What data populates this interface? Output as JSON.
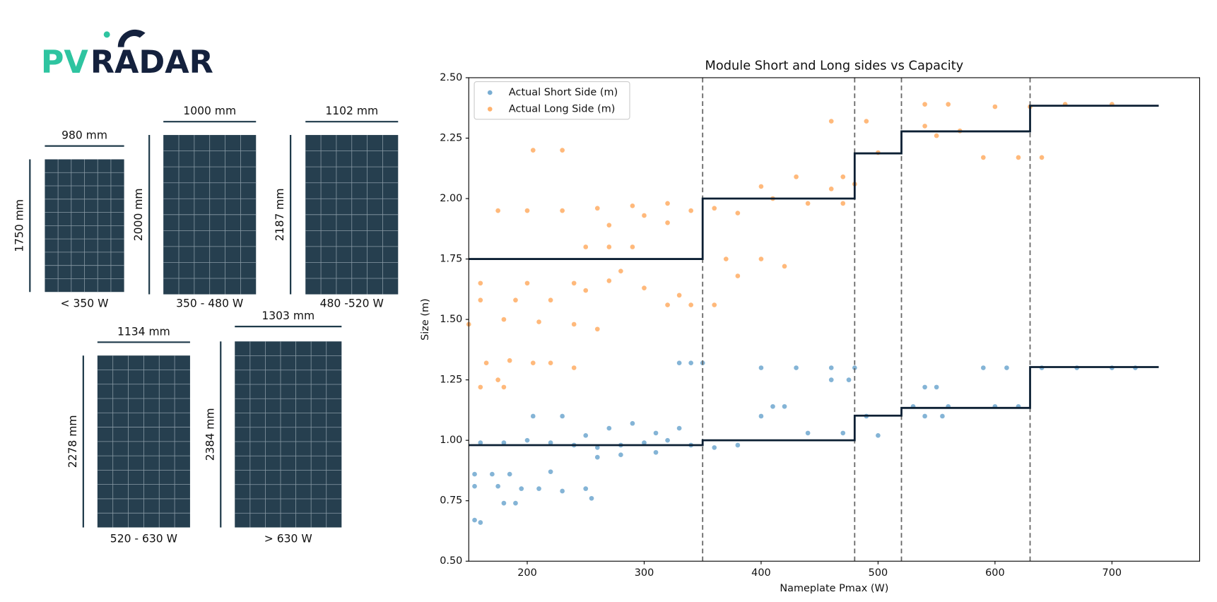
{
  "logo": {
    "part1": "PV",
    "part2": "RADAR"
  },
  "modules": [
    {
      "width": "980 mm",
      "height": "1750 mm",
      "range": "< 350 W"
    },
    {
      "width": "1000 mm",
      "height": "2000 mm",
      "range": "350 - 480 W"
    },
    {
      "width": "1102 mm",
      "height": "2187 mm",
      "range": "480 -520 W"
    },
    {
      "width": "1134 mm",
      "height": "2278 mm",
      "range": "520 - 630 W"
    },
    {
      "width": "1303 mm",
      "height": "2384 mm",
      "range": "> 630 W"
    }
  ],
  "chart_data": {
    "type": "scatter",
    "title": "Module Short and Long sides vs Capacity",
    "x_label": "Nameplate Pmax (W)",
    "y_label": "Size (m)",
    "xlim": [
      150,
      775
    ],
    "xticks": [
      200,
      300,
      400,
      500,
      600,
      700
    ],
    "ylim": [
      0.5,
      2.5
    ],
    "yticks": [
      {
        "value": 0.5,
        "label": "0.50"
      },
      {
        "value": 0.75,
        "label": "0.75"
      },
      {
        "value": 1.0,
        "label": "1.00"
      },
      {
        "value": 1.25,
        "label": "1.25"
      },
      {
        "value": 1.5,
        "label": "1.50"
      },
      {
        "value": 1.75,
        "label": "1.75"
      },
      {
        "value": 2.0,
        "label": "2.00"
      },
      {
        "value": 2.25,
        "label": "2.25"
      },
      {
        "value": 2.5,
        "label": "2.50"
      }
    ],
    "legend": "upper left",
    "series": [
      {
        "name": "Actual Short Side (m)",
        "color": "#1f77b4",
        "x": [
          155,
          170,
          185,
          155,
          175,
          195,
          210,
          230,
          250,
          180,
          190,
          155,
          160,
          220,
          255,
          160,
          180,
          200,
          220,
          240,
          260,
          280,
          300,
          320,
          340,
          360,
          380,
          250,
          270,
          290,
          310,
          330,
          260,
          280,
          310,
          205,
          230,
          330,
          340,
          350,
          400,
          430,
          460,
          480,
          460,
          475,
          410,
          420,
          400,
          440,
          470,
          490,
          500,
          540,
          550,
          530,
          560,
          600,
          620,
          540,
          555,
          590,
          610,
          640,
          670,
          700,
          720
        ],
        "values": [
          0.86,
          0.86,
          0.86,
          0.81,
          0.81,
          0.8,
          0.8,
          0.79,
          0.8,
          0.74,
          0.74,
          0.67,
          0.66,
          0.87,
          0.76,
          0.99,
          0.99,
          1.0,
          0.99,
          0.98,
          0.97,
          0.98,
          0.99,
          1.0,
          0.98,
          0.97,
          0.98,
          1.02,
          1.05,
          1.07,
          1.03,
          1.05,
          0.93,
          0.94,
          0.95,
          1.1,
          1.1,
          1.32,
          1.32,
          1.32,
          1.3,
          1.3,
          1.3,
          1.3,
          1.25,
          1.25,
          1.14,
          1.14,
          1.1,
          1.03,
          1.03,
          1.1,
          1.02,
          1.22,
          1.22,
          1.14,
          1.14,
          1.14,
          1.14,
          1.1,
          1.1,
          1.3,
          1.3,
          1.3,
          1.3,
          1.3,
          1.3
        ]
      },
      {
        "name": "Actual Long Side (m)",
        "color": "#ff7f0e",
        "x": [
          150,
          160,
          180,
          165,
          185,
          205,
          220,
          240,
          175,
          160,
          190,
          220,
          160,
          200,
          240,
          270,
          300,
          330,
          250,
          280,
          320,
          340,
          360,
          180,
          210,
          240,
          260,
          270,
          290,
          250,
          175,
          200,
          230,
          260,
          290,
          320,
          340,
          360,
          380,
          300,
          320,
          270,
          205,
          230,
          370,
          400,
          420,
          380,
          410,
          440,
          470,
          460,
          430,
          470,
          480,
          400,
          460,
          490,
          500,
          540,
          550,
          570,
          560,
          540,
          590,
          620,
          640,
          600,
          630,
          660,
          700
        ],
        "values": [
          1.48,
          1.22,
          1.22,
          1.32,
          1.33,
          1.32,
          1.32,
          1.3,
          1.25,
          1.58,
          1.58,
          1.58,
          1.65,
          1.65,
          1.65,
          1.66,
          1.63,
          1.6,
          1.62,
          1.7,
          1.56,
          1.56,
          1.56,
          1.5,
          1.49,
          1.48,
          1.46,
          1.8,
          1.8,
          1.8,
          1.95,
          1.95,
          1.95,
          1.96,
          1.97,
          1.98,
          1.95,
          1.96,
          1.94,
          1.93,
          1.9,
          1.89,
          2.2,
          2.2,
          1.75,
          1.75,
          1.72,
          1.68,
          2.0,
          1.98,
          1.98,
          2.04,
          2.09,
          2.09,
          2.06,
          2.05,
          2.32,
          2.32,
          2.19,
          2.3,
          2.26,
          2.28,
          2.39,
          2.39,
          2.17,
          2.17,
          2.17,
          2.38,
          2.38,
          2.39,
          2.39
        ]
      }
    ],
    "step_lines": [
      {
        "color": "#0b1f33",
        "x": [
          150,
          350,
          350,
          480,
          480,
          520,
          520,
          630,
          630,
          740
        ],
        "values": [
          0.98,
          0.98,
          1.0,
          1.0,
          1.102,
          1.102,
          1.134,
          1.134,
          1.303,
          1.303
        ]
      },
      {
        "color": "#0b1f33",
        "x": [
          150,
          350,
          350,
          480,
          480,
          520,
          520,
          630,
          630,
          740
        ],
        "values": [
          1.75,
          1.75,
          2.0,
          2.0,
          2.187,
          2.187,
          2.278,
          2.278,
          2.384,
          2.384
        ]
      }
    ],
    "vlines": [
      350,
      480,
      520,
      630
    ]
  }
}
